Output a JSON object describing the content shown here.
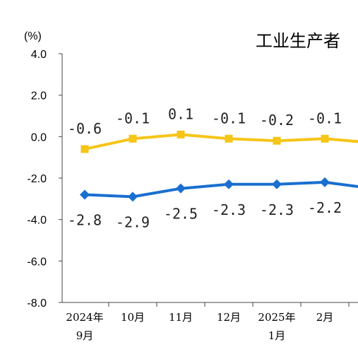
{
  "chart_data": {
    "type": "line",
    "title": "工业生产者",
    "unit_label": "(%)",
    "ylim": [
      -8.0,
      4.0
    ],
    "yticks": [
      "4.0",
      "2.0",
      "0.0",
      "-2.0",
      "-4.0",
      "-6.0",
      "-8.0"
    ],
    "ytick_values": [
      4,
      2,
      0,
      -2,
      -4,
      -6,
      -8
    ],
    "categories": [
      [
        "2024年",
        "9月"
      ],
      [
        "10月"
      ],
      [
        "11月"
      ],
      [
        "12月"
      ],
      [
        "2025年",
        "1月"
      ],
      [
        "2月"
      ],
      [
        ""
      ]
    ],
    "grid": false,
    "series": [
      {
        "color": "#F5C518",
        "marker": "square",
        "values": [
          -0.6,
          -0.1,
          0.1,
          -0.1,
          -0.2,
          -0.1,
          -0.3
        ],
        "labels": [
          "-0.6",
          "-0.1",
          "0.1",
          "-0.1",
          "-0.2",
          "-0.1",
          ""
        ],
        "label_position": "above"
      },
      {
        "color": "#1A6FD0",
        "marker": "diamond",
        "values": [
          -2.8,
          -2.9,
          -2.5,
          -2.3,
          -2.3,
          -2.2,
          -2.5
        ],
        "labels": [
          "-2.8",
          "-2.9",
          "-2.5",
          "-2.3",
          "-2.3",
          "-2.2",
          ""
        ],
        "label_position": "below"
      }
    ]
  }
}
